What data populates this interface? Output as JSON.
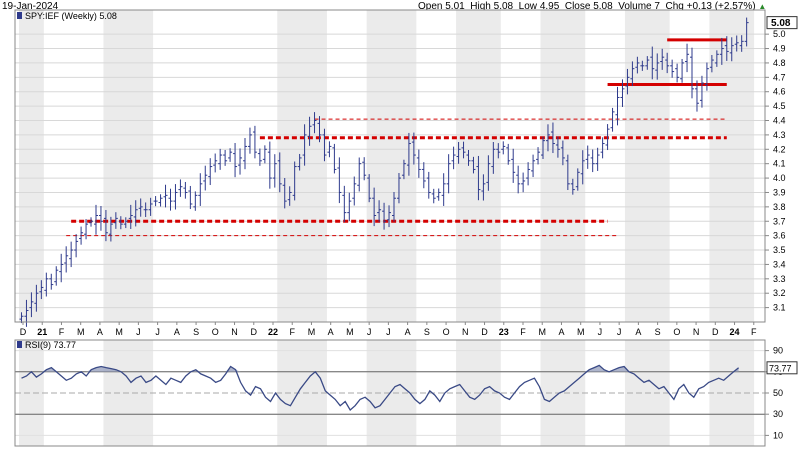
{
  "header": {
    "date": "19-Jan-2024",
    "open_label": "Open",
    "open": "5.01",
    "high_label": "High",
    "high": "5.08",
    "low_label": "Low",
    "low": "4.95",
    "close_label": "Close",
    "close": "5.08",
    "volume_label": "Volume",
    "volume": "7",
    "chg_label": "Chg",
    "chg": "+0.13 (+2.57%)"
  },
  "chart_data": [
    {
      "type": "bar",
      "subtype": "ohlc",
      "legend": "SPY:IEF (Weekly) 5.08",
      "last_value_label": "5.08",
      "ylim": [
        3.0,
        5.08
      ],
      "y_ticks": [
        "3.1",
        "3.2",
        "3.3",
        "3.4",
        "3.5",
        "3.6",
        "3.7",
        "3.8",
        "3.9",
        "4.0",
        "4.1",
        "4.2",
        "4.3",
        "4.4",
        "4.5",
        "4.6",
        "4.7",
        "4.8",
        "4.9",
        "5.0"
      ],
      "x_ticks": [
        {
          "label": "D",
          "bold": false
        },
        {
          "label": "21",
          "bold": true
        },
        {
          "label": "F",
          "bold": false
        },
        {
          "label": "M",
          "bold": false
        },
        {
          "label": "A",
          "bold": false
        },
        {
          "label": "M",
          "bold": false
        },
        {
          "label": "J",
          "bold": false
        },
        {
          "label": "J",
          "bold": false
        },
        {
          "label": "A",
          "bold": false
        },
        {
          "label": "S",
          "bold": false
        },
        {
          "label": "O",
          "bold": false
        },
        {
          "label": "N",
          "bold": false
        },
        {
          "label": "D",
          "bold": false
        },
        {
          "label": "22",
          "bold": true
        },
        {
          "label": "F",
          "bold": false
        },
        {
          "label": "M",
          "bold": false
        },
        {
          "label": "A",
          "bold": false
        },
        {
          "label": "M",
          "bold": false
        },
        {
          "label": "J",
          "bold": false
        },
        {
          "label": "J",
          "bold": false
        },
        {
          "label": "A",
          "bold": false
        },
        {
          "label": "S",
          "bold": false
        },
        {
          "label": "O",
          "bold": false
        },
        {
          "label": "N",
          "bold": false
        },
        {
          "label": "D",
          "bold": false
        },
        {
          "label": "23",
          "bold": true
        },
        {
          "label": "F",
          "bold": false
        },
        {
          "label": "M",
          "bold": false
        },
        {
          "label": "A",
          "bold": false
        },
        {
          "label": "M",
          "bold": false
        },
        {
          "label": "J",
          "bold": false
        },
        {
          "label": "J",
          "bold": false
        },
        {
          "label": "A",
          "bold": false
        },
        {
          "label": "S",
          "bold": false
        },
        {
          "label": "O",
          "bold": false
        },
        {
          "label": "N",
          "bold": false
        },
        {
          "label": "D",
          "bold": false
        },
        {
          "label": "24",
          "bold": true
        },
        {
          "label": "F",
          "bold": false
        }
      ],
      "closes": [
        3.04,
        3.08,
        3.14,
        3.2,
        3.24,
        3.3,
        3.26,
        3.36,
        3.4,
        3.46,
        3.5,
        3.56,
        3.62,
        3.68,
        3.7,
        3.74,
        3.7,
        3.62,
        3.68,
        3.72,
        3.68,
        3.7,
        3.74,
        3.78,
        3.8,
        3.78,
        3.82,
        3.84,
        3.86,
        3.88,
        3.84,
        3.9,
        3.94,
        3.9,
        3.82,
        3.88,
        3.96,
        4.02,
        4.08,
        4.12,
        4.16,
        4.12,
        4.18,
        4.08,
        4.14,
        4.22,
        4.3,
        4.18,
        4.12,
        4.2,
        4.0,
        4.1,
        3.96,
        3.84,
        3.9,
        4.08,
        4.14,
        4.3,
        4.36,
        4.4,
        4.3,
        4.16,
        4.22,
        4.06,
        3.9,
        3.76,
        3.84,
        3.96,
        4.1,
        4.02,
        3.86,
        3.74,
        3.78,
        3.7,
        3.76,
        3.86,
        4.0,
        4.1,
        4.24,
        4.16,
        4.06,
        3.98,
        3.9,
        3.86,
        3.9,
        3.96,
        4.1,
        4.16,
        4.2,
        4.18,
        4.12,
        4.06,
        3.92,
        3.96,
        4.1,
        4.2,
        4.18,
        4.22,
        4.12,
        4.04,
        3.96,
        3.98,
        4.06,
        4.12,
        4.18,
        4.26,
        4.3,
        4.24,
        4.2,
        4.14,
        3.96,
        3.92,
        4.04,
        4.12,
        4.16,
        4.1,
        4.16,
        4.24,
        4.34,
        4.46,
        4.56,
        4.62,
        4.7,
        4.76,
        4.8,
        4.78,
        4.82,
        4.76,
        4.8,
        4.84,
        4.78,
        4.74,
        4.7,
        4.8,
        4.86,
        4.62,
        4.52,
        4.66,
        4.76,
        4.82,
        4.86,
        4.9,
        4.88,
        4.92,
        4.94,
        4.95,
        5.08
      ],
      "support_resistance": [
        {
          "level": 3.7,
          "style": "dashed",
          "weight": "heavy",
          "from_week": 10,
          "to_week": 118
        },
        {
          "level": 4.28,
          "style": "dashed",
          "weight": "heavy",
          "from_week": 48,
          "to_week": 142
        },
        {
          "level": 4.65,
          "style": "solid",
          "weight": "heavy",
          "from_week": 118,
          "to_week": 142
        },
        {
          "level": 4.96,
          "style": "solid",
          "weight": "heavy",
          "from_week": 130,
          "to_week": 142
        },
        {
          "level": 3.6,
          "style": "dashed",
          "weight": "thin",
          "from_week": 9,
          "to_week": 120
        },
        {
          "level": 4.41,
          "style": "dashed",
          "weight": "thin",
          "from_week": 59,
          "to_week": 142
        }
      ],
      "shaded_regions_weeks": [
        [
          0,
          4
        ],
        [
          17,
          26
        ],
        [
          52,
          61
        ],
        [
          70,
          79
        ],
        [
          88,
          96
        ],
        [
          105,
          113
        ],
        [
          122,
          130
        ],
        [
          139,
          147
        ]
      ]
    },
    {
      "type": "line",
      "legend": "RSI(9) 73.77",
      "last_value_label": "73.77",
      "ylim": [
        0,
        100
      ],
      "y_ticks": [
        "10",
        "30",
        "50",
        "70",
        "90"
      ],
      "overbought": 70,
      "oversold": 30,
      "values": [
        64,
        66,
        70,
        65,
        68,
        72,
        74,
        70,
        66,
        62,
        64,
        68,
        70,
        66,
        72,
        74,
        75,
        74,
        73,
        72,
        70,
        66,
        60,
        64,
        66,
        60,
        62,
        66,
        62,
        58,
        64,
        62,
        60,
        66,
        70,
        72,
        68,
        66,
        64,
        60,
        62,
        68,
        75,
        72,
        60,
        52,
        48,
        56,
        54,
        46,
        42,
        50,
        44,
        40,
        38,
        46,
        54,
        60,
        66,
        70,
        64,
        52,
        48,
        44,
        38,
        42,
        34,
        38,
        44,
        46,
        42,
        36,
        38,
        44,
        50,
        56,
        58,
        54,
        50,
        44,
        40,
        44,
        52,
        48,
        42,
        50,
        54,
        56,
        58,
        52,
        46,
        44,
        48,
        54,
        56,
        52,
        50,
        46,
        44,
        50,
        56,
        60,
        62,
        64,
        56,
        44,
        42,
        46,
        50,
        52,
        56,
        60,
        64,
        68,
        72,
        74,
        76,
        72,
        70,
        72,
        74,
        75,
        70,
        68,
        64,
        60,
        62,
        58,
        54,
        56,
        50,
        44,
        54,
        58,
        50,
        46,
        54,
        56,
        60,
        62,
        64,
        62,
        66,
        70,
        73.77
      ]
    }
  ]
}
